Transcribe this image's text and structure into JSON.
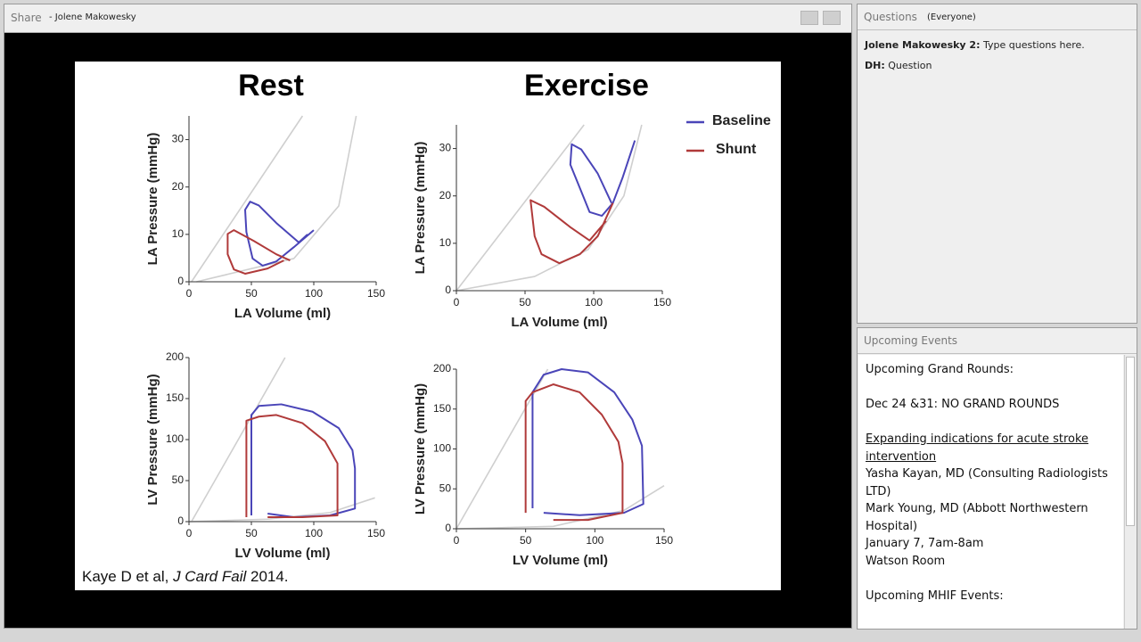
{
  "share_bar": {
    "title": "Share",
    "presenter": "- Jolene Makowesky"
  },
  "slide": {
    "headings": [
      "Rest",
      "Exercise"
    ],
    "citation": {
      "authors": "Kaye D et al,",
      "journal": "J Card Fail",
      "year": "2014."
    },
    "charts": [
      {
        "type": "line",
        "xlabel": "LA Volume (ml)",
        "ylabel": "LA Pressure (mmHg)",
        "xlim": [
          0,
          150
        ],
        "ylim": [
          0,
          35
        ],
        "xticks": [
          0,
          50,
          100,
          150
        ],
        "yticks": [
          0,
          10,
          20,
          30
        ],
        "series": [
          {
            "color": "#4a45b8",
            "x": [
              100,
              84,
              70,
              59,
              51,
              46,
              45,
              49,
              56,
              70,
              88,
              95
            ],
            "y": [
              10.9,
              7.3,
              4.3,
              3.4,
              4.9,
              10.5,
              15.2,
              16.9,
              16.1,
              12.4,
              8.3,
              10
            ]
          },
          {
            "color": "#b03a3a",
            "x": [
              76,
              63,
              45,
              36,
              31,
              31,
              36,
              52,
              70,
              81
            ],
            "y": [
              4.5,
              2.8,
              1.7,
              2.6,
              5.8,
              10.1,
              10.9,
              8.6,
              5.8,
              4.5
            ]
          }
        ],
        "reference_lines": [
          {
            "color": "#cfcfcf",
            "x": [
              2,
              91
            ],
            "y": [
              0,
              35
            ]
          },
          {
            "color": "#cfcfcf",
            "x": [
              6,
              84,
              120,
              134
            ],
            "y": [
              0,
              4.9,
              16,
              35
            ]
          }
        ]
      },
      {
        "type": "line",
        "xlabel": "LA Volume (ml)",
        "ylabel": "LA Pressure (mmHg)",
        "xlim": [
          0,
          150
        ],
        "ylim": [
          0,
          35
        ],
        "xticks": [
          0,
          50,
          100,
          150
        ],
        "yticks": [
          0,
          10,
          20,
          30
        ],
        "series": [
          {
            "name": "Baseline",
            "color": "#4a45b8",
            "x": [
              130,
              121,
              114,
              106,
              97,
              91,
              83,
              84,
              91,
              103,
              113
            ],
            "y": [
              31.7,
              23.8,
              18.5,
              15.8,
              16.6,
              20.9,
              26.6,
              30.9,
              29.8,
              24.7,
              18.5
            ]
          },
          {
            "name": "Shunt",
            "color": "#b03a3a",
            "x": [
              114,
              103,
              90,
              75,
              62,
              57,
              54,
              64,
              83,
              97,
              109
            ],
            "y": [
              18.5,
              11.5,
              7.7,
              5.8,
              7.7,
              11.5,
              19.1,
              17.7,
              13.4,
              10.6,
              14.7
            ]
          }
        ],
        "reference_lines": [
          {
            "color": "#cfcfcf",
            "x": [
              0,
              93
            ],
            "y": [
              0,
              35
            ]
          },
          {
            "color": "#cfcfcf",
            "x": [
              0,
              57,
              96,
              122,
              135
            ],
            "y": [
              0,
              3,
              8.7,
              20,
              35
            ]
          }
        ]
      },
      {
        "type": "line",
        "xlabel": "LV Volume (ml)",
        "ylabel": "LV Pressure (mmHg)",
        "xlim": [
          0,
          150
        ],
        "ylim": [
          0,
          200
        ],
        "xticks": [
          0,
          50,
          100,
          150
        ],
        "yticks": [
          0,
          50,
          100,
          150,
          200
        ],
        "series": [
          {
            "color": "#4a45b8",
            "x": [
              50,
              50,
              56,
              74,
              99,
              120,
              131,
              133,
              133,
              113,
              84,
              63
            ],
            "y": [
              7.6,
              130,
              141,
              143,
              134,
              114,
              87,
              65,
              16,
              7.6,
              5.4,
              9.8
            ]
          },
          {
            "color": "#b03a3a",
            "x": [
              46,
              46,
              56,
              70,
              91,
              109,
              119,
              119,
              91,
              63
            ],
            "y": [
              5.4,
              123,
              128,
              130,
              120,
              98,
              71,
              7.6,
              5.4,
              5.4
            ]
          }
        ],
        "reference_lines": [
          {
            "color": "#cfcfcf",
            "x": [
              2,
              77
            ],
            "y": [
              0,
              200
            ]
          },
          {
            "color": "#cfcfcf",
            "x": [
              0,
              63,
              113,
              149
            ],
            "y": [
              0,
              3,
              11,
              29
            ]
          }
        ]
      },
      {
        "type": "line",
        "xlabel": "LV Volume (ml)",
        "ylabel": "LV Pressure (mmHg)",
        "xlim": [
          0,
          150
        ],
        "ylim": [
          0,
          200
        ],
        "xticks": [
          0,
          50,
          100,
          150
        ],
        "yticks": [
          0,
          50,
          100,
          150,
          200
        ],
        "series": [
          {
            "color": "#4a45b8",
            "x": [
              55,
              55,
              63,
              76,
              95,
              114,
              127,
              134,
              135,
              121,
              89,
              63
            ],
            "y": [
              25.7,
              171,
              193,
              200,
              196,
              171,
              137,
              104,
              31,
              20,
              17,
              20
            ]
          },
          {
            "color": "#b03a3a",
            "x": [
              50,
              50,
              55,
              70,
              89,
              105,
              117,
              120,
              120,
              95,
              70
            ],
            "y": [
              20,
              160,
              171,
              181,
              171,
              143,
              109,
              82,
              20,
              11,
              11
            ]
          }
        ],
        "reference_lines": [
          {
            "color": "#cfcfcf",
            "x": [
              0,
              66
            ],
            "y": [
              0,
              200
            ]
          },
          {
            "color": "#cfcfcf",
            "x": [
              0,
              70,
              121,
              150
            ],
            "y": [
              0,
              3,
              23,
              54
            ]
          }
        ]
      }
    ]
  },
  "questions": {
    "title": "Questions",
    "scope": "(Everyone)",
    "items": [
      {
        "author": "Jolene Makowesky 2:",
        "text": "Type questions here."
      },
      {
        "author": "DH:",
        "text": "Question"
      }
    ]
  },
  "events": {
    "title": "Upcoming Events",
    "groups": [
      [
        "Upcoming Grand Rounds:"
      ],
      [
        "Dec 24 &31: NO GRAND ROUNDS"
      ],
      [
        "Expanding indications for acute stroke intervention",
        "Yasha Kayan, MD (Consulting Radiologists LTD)",
        "Mark Young, MD (Abbott Northwestern Hospital)",
        "January 7, 7am-8am",
        "Watson Room"
      ],
      [
        "Upcoming MHIF Events:"
      ]
    ]
  }
}
